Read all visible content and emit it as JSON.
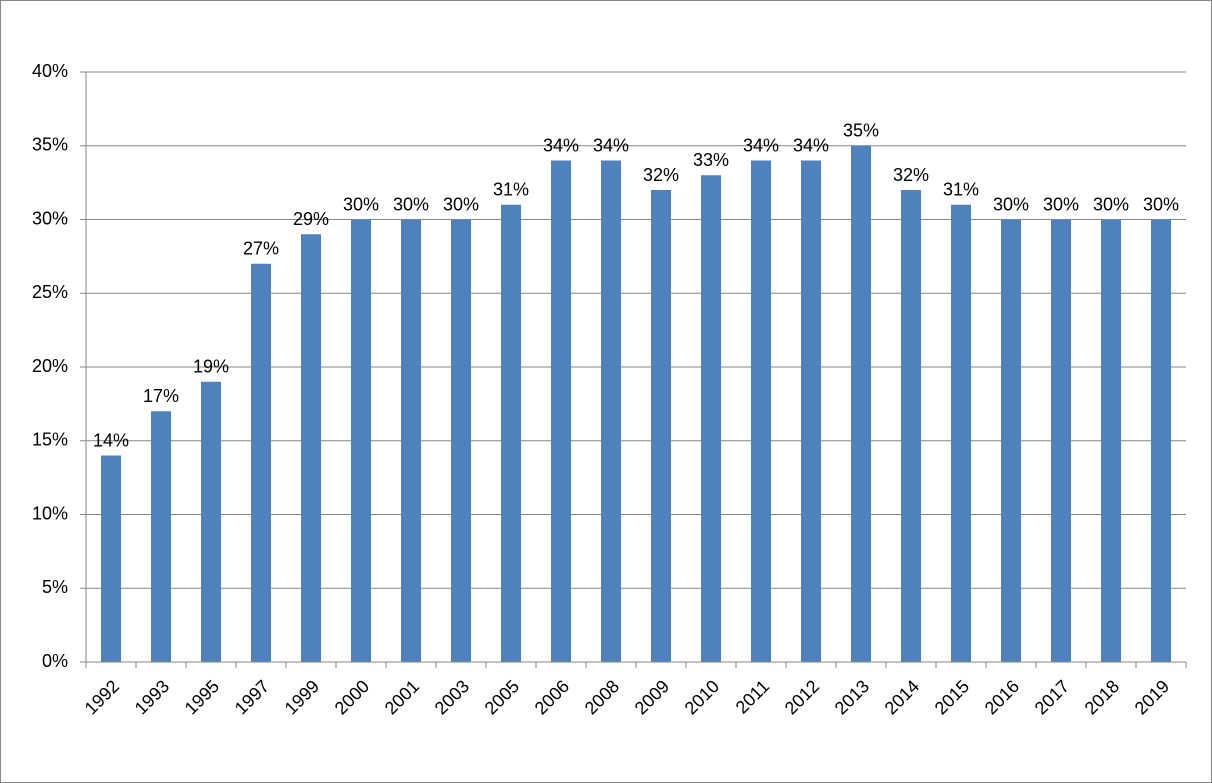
{
  "chart_data": {
    "type": "bar",
    "categories": [
      "1992",
      "1993",
      "1995",
      "1997",
      "1999",
      "2000",
      "2001",
      "2003",
      "2005",
      "2006",
      "2008",
      "2009",
      "2010",
      "2011",
      "2012",
      "2013",
      "2014",
      "2015",
      "2016",
      "2017",
      "2018",
      "2019"
    ],
    "values": [
      14,
      17,
      19,
      27,
      29,
      30,
      30,
      30,
      31,
      34,
      34,
      32,
      33,
      34,
      34,
      35,
      32,
      31,
      30,
      30,
      30,
      30
    ],
    "value_labels": [
      "14%",
      "17%",
      "19%",
      "27%",
      "29%",
      "30%",
      "30%",
      "30%",
      "31%",
      "34%",
      "34%",
      "32%",
      "33%",
      "34%",
      "34%",
      "35%",
      "32%",
      "31%",
      "30%",
      "30%",
      "30%",
      "30%"
    ],
    "color": "#4f81bd",
    "ylim": [
      0,
      40
    ],
    "yticks": [
      {
        "value": 0,
        "label": "0%"
      },
      {
        "value": 5,
        "label": "5%"
      },
      {
        "value": 10,
        "label": "10%"
      },
      {
        "value": 15,
        "label": "15%"
      },
      {
        "value": 20,
        "label": "20%"
      },
      {
        "value": 25,
        "label": "25%"
      },
      {
        "value": 30,
        "label": "30%"
      },
      {
        "value": 35,
        "label": "35%"
      },
      {
        "value": 40,
        "label": "40%"
      }
    ],
    "grid": true
  }
}
